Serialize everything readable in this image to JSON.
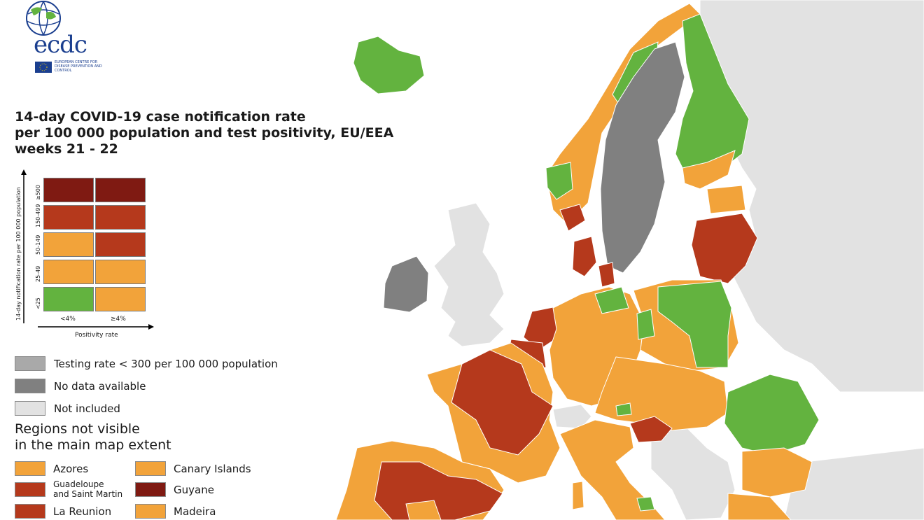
{
  "logo": {
    "name": "ecdc",
    "subtitle": "EUROPEAN CENTRE FOR DISEASE PREVENTION AND CONTROL"
  },
  "title": {
    "line1": "14-day COVID-19 case notification rate",
    "line2": "per 100 000 population and test positivity, EU/EEA",
    "line3": "weeks 21 - 22"
  },
  "matrix": {
    "y_axis_label": "14-day notification rate per 100 000 population",
    "x_axis_label": "Positivity rate",
    "rows": [
      "≥500",
      "150-499",
      "50-149",
      "25-49",
      "<25"
    ],
    "cols": [
      "<4%",
      "≥4%"
    ],
    "colors": {
      "dark_red": "#7f1a12",
      "red": "#b5391c",
      "orange": "#f2a33a",
      "green": "#63b33f"
    },
    "cells": [
      [
        "dark_red",
        "dark_red"
      ],
      [
        "red",
        "red"
      ],
      [
        "orange",
        "red"
      ],
      [
        "orange",
        "orange"
      ],
      [
        "green",
        "orange"
      ]
    ]
  },
  "legend": [
    {
      "label": "Testing rate < 300 per 100 000 population",
      "color": "#a9a9a9"
    },
    {
      "label": "No data available",
      "color": "#808080"
    },
    {
      "label": "Not included",
      "color": "#e2e2e2"
    }
  ],
  "regions": {
    "heading_line1": "Regions not visible",
    "heading_line2": "in the main map extent",
    "items": [
      {
        "label": "Azores",
        "color": "#f2a33a"
      },
      {
        "label": "Canary Islands",
        "color": "#f2a33a"
      },
      {
        "label": "Guadeloupe",
        "label2": "and Saint Martin",
        "color": "#b5391c"
      },
      {
        "label": "Guyane",
        "color": "#7f1a12"
      },
      {
        "label": "La Reunion",
        "color": "#b5391c"
      },
      {
        "label": "Madeira",
        "color": "#f2a33a"
      }
    ]
  }
}
